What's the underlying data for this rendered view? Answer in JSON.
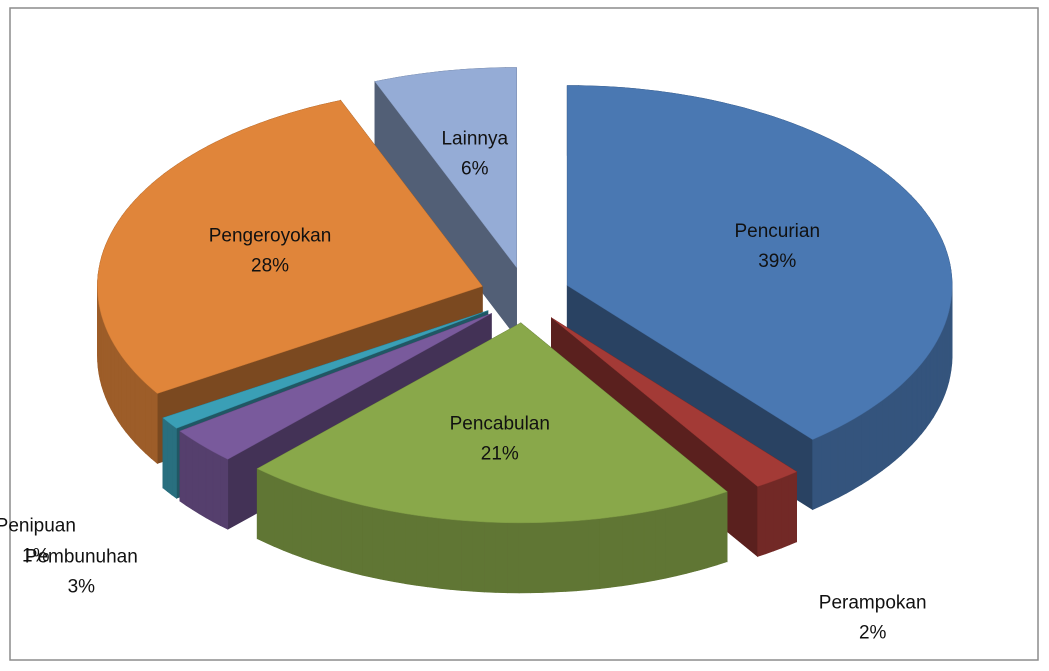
{
  "chart_data": {
    "type": "pie",
    "categories": [
      "Pencurian",
      "Perampokan",
      "Pencabulan",
      "Pembunuhan",
      "Penipuan",
      "Pengeroyokan",
      "Lainnya"
    ],
    "values": [
      39,
      2,
      21,
      3,
      1,
      28,
      6
    ],
    "value_labels": [
      "39%",
      "2%",
      "21%",
      "3%",
      "1%",
      "28%",
      "6%"
    ],
    "colors": [
      "#4a78b2",
      "#a33a36",
      "#89a84a",
      "#795a9c",
      "#3a9fb6",
      "#e0853a",
      "#95acd6"
    ]
  }
}
